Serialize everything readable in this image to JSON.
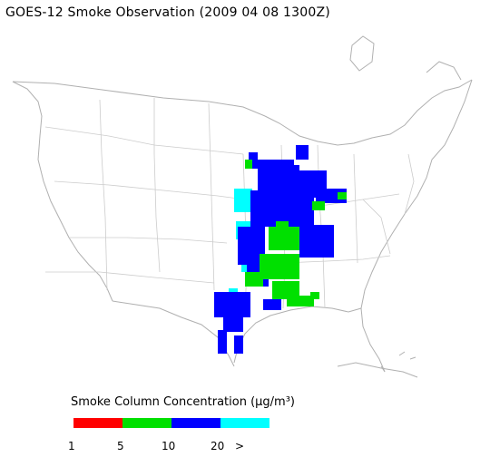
{
  "title": "GOES-12 Smoke Observation (2009 04 08  1300Z)",
  "legend": {
    "title": "Smoke Column Concentration (μg/m³)",
    "colors": [
      "#ff0000",
      "#00e000",
      "#0000ff",
      "#00ffff"
    ],
    "ticks": [
      "1",
      "5",
      "10",
      "20",
      ">"
    ]
  },
  "map_style": {
    "background": "#ffffff",
    "state_borders": "#cccccc",
    "coastline": "#b0b0b0"
  }
}
